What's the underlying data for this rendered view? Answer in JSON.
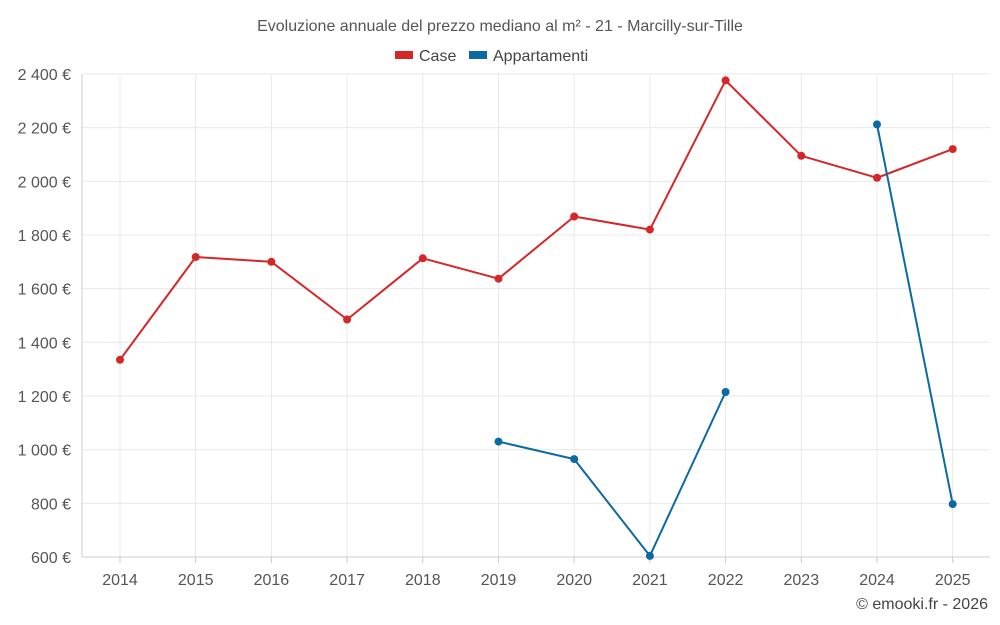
{
  "chart_data": {
    "type": "line",
    "title": "Evoluzione annuale del prezzo mediano al m² - 21 - Marcilly-sur-Tille",
    "categories": [
      "2014",
      "2015",
      "2016",
      "2017",
      "2018",
      "2019",
      "2020",
      "2021",
      "2022",
      "2023",
      "2024",
      "2025"
    ],
    "series": [
      {
        "name": "Case",
        "color": "#d62728",
        "values": [
          1335,
          1718,
          1700,
          1485,
          1713,
          1637,
          1869,
          1820,
          2376,
          2095,
          2013,
          2120
        ]
      },
      {
        "name": "Appartamenti",
        "color": "#0b6aa2",
        "values": [
          null,
          null,
          null,
          null,
          null,
          1030,
          965,
          604,
          1215,
          null,
          2212,
          797
        ]
      }
    ],
    "ylim": [
      600,
      2400
    ],
    "yticks": [
      600,
      800,
      1000,
      1200,
      1400,
      1600,
      1800,
      2000,
      2200,
      2400
    ],
    "ytick_labels": [
      "600 €",
      "800 €",
      "1 000 €",
      "1 200 €",
      "1 400 €",
      "1 600 €",
      "1 800 €",
      "2 000 €",
      "2 200 €",
      "2 400 €"
    ],
    "xlabel": "",
    "ylabel": "",
    "grid": true,
    "legend_position": "top-center"
  },
  "credit": "© emooki.fr - 2026"
}
